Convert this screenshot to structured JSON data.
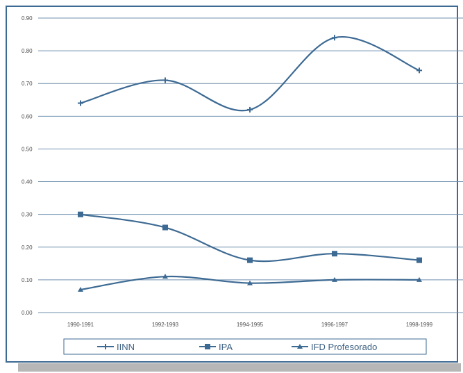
{
  "chart_data": {
    "type": "line",
    "categories": [
      "1990-1991",
      "1992-1993",
      "1994-1995",
      "1996-1997",
      "1998-1999"
    ],
    "ylim": [
      0,
      0.9
    ],
    "yticks": [
      "0.00",
      "0.10",
      "0.20",
      "0.30",
      "0.40",
      "0.50",
      "0.60",
      "0.70",
      "0.80",
      "0.90"
    ],
    "grid": true,
    "legend_position": "bottom",
    "series": [
      {
        "name": "IINN",
        "marker": "plus",
        "values": [
          0.64,
          0.71,
          0.62,
          0.84,
          0.74
        ]
      },
      {
        "name": "IPA",
        "marker": "square",
        "values": [
          0.3,
          0.26,
          0.16,
          0.18,
          0.16
        ]
      },
      {
        "name": "IFD Profesorado",
        "marker": "triangle",
        "values": [
          0.07,
          0.11,
          0.09,
          0.1,
          0.1
        ]
      }
    ],
    "colors": {
      "line": "#3d6a93",
      "grid": "#6f8fae",
      "frame": "#3d6a93"
    }
  }
}
